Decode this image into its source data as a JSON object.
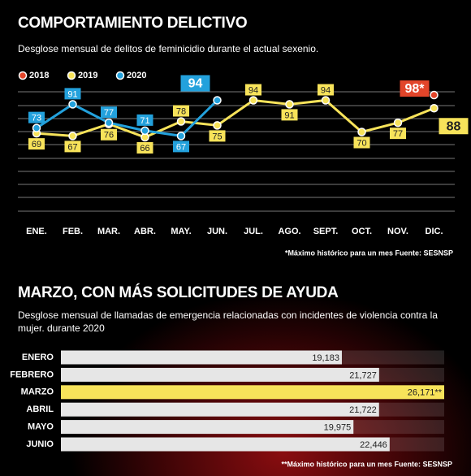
{
  "chart_data": [
    {
      "type": "line",
      "title": "COMPORTAMIENTO DELICTIVO",
      "subtitle": "Desglose mensual de delitos de feminicidio durante el actual sexenio.",
      "categories": [
        "ENE.",
        "FEB.",
        "MAR.",
        "ABR.",
        "MAY.",
        "JUN.",
        "JUL.",
        "AGO.",
        "SEPT.",
        "OCT.",
        "NOV.",
        "DIC."
      ],
      "series": [
        {
          "name": "2018",
          "color": "#e2452a",
          "values": [
            null,
            null,
            null,
            null,
            null,
            null,
            null,
            null,
            null,
            null,
            null,
            98
          ],
          "value_labels": [
            null,
            null,
            null,
            null,
            null,
            null,
            null,
            null,
            null,
            null,
            null,
            "98*"
          ]
        },
        {
          "name": "2019",
          "color": "#f7e35a",
          "values": [
            69,
            67,
            76,
            66,
            78,
            75,
            94,
            91,
            94,
            70,
            77,
            88
          ]
        },
        {
          "name": "2020",
          "color": "#23a1dc",
          "values": [
            73,
            91,
            77,
            71,
            67,
            94,
            null,
            null,
            null,
            null,
            null,
            null
          ]
        }
      ],
      "footnote": "*Máximo histórico para un mes  Fuente: SESNSP"
    },
    {
      "type": "bar",
      "title": "MARZO, CON MÁS SOLICITUDES DE AYUDA",
      "subtitle": "Desglose mensual de llamadas de emergencia relacionadas con incidentes de violencia contra la mujer. durante 2020",
      "categories": [
        "ENERO",
        "FEBRERO",
        "MARZO",
        "ABRIL",
        "MAYO",
        "JUNIO"
      ],
      "values": [
        19183,
        21727,
        26171,
        21722,
        19975,
        22446
      ],
      "value_labels": [
        "19,183",
        "21,727",
        "26,171**",
        "21,722",
        "19,975",
        "22,446"
      ],
      "colors": [
        "#e6e6e6",
        "#e6e6e6",
        "#f7e35a",
        "#e6e6e6",
        "#e6e6e6",
        "#e6e6e6"
      ],
      "footnote": "**Máximo histórico para un mes   Fuente: SESNSP"
    }
  ]
}
